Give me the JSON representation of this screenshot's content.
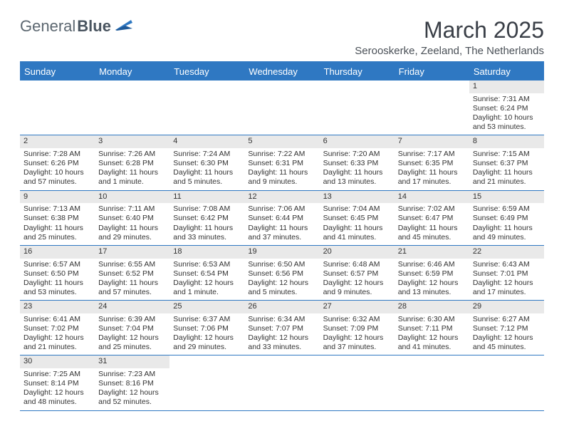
{
  "brand": {
    "part1": "General",
    "part2": "Blue"
  },
  "title": "March 2025",
  "subtitle": "Serooskerke, Zeeland, The Netherlands",
  "colors": {
    "header_bg": "#2f78c2",
    "header_text": "#ffffff",
    "body_text": "#333333",
    "brand_gray": "#5c6770",
    "daynum_bg": "#e9e9e9"
  },
  "day_headers": [
    "Sunday",
    "Monday",
    "Tuesday",
    "Wednesday",
    "Thursday",
    "Friday",
    "Saturday"
  ],
  "weeks": [
    [
      null,
      null,
      null,
      null,
      null,
      null,
      {
        "n": "1",
        "sr": "Sunrise: 7:31 AM",
        "ss": "Sunset: 6:24 PM",
        "dl": "Daylight: 10 hours and 53 minutes."
      }
    ],
    [
      {
        "n": "2",
        "sr": "Sunrise: 7:28 AM",
        "ss": "Sunset: 6:26 PM",
        "dl": "Daylight: 10 hours and 57 minutes."
      },
      {
        "n": "3",
        "sr": "Sunrise: 7:26 AM",
        "ss": "Sunset: 6:28 PM",
        "dl": "Daylight: 11 hours and 1 minute."
      },
      {
        "n": "4",
        "sr": "Sunrise: 7:24 AM",
        "ss": "Sunset: 6:30 PM",
        "dl": "Daylight: 11 hours and 5 minutes."
      },
      {
        "n": "5",
        "sr": "Sunrise: 7:22 AM",
        "ss": "Sunset: 6:31 PM",
        "dl": "Daylight: 11 hours and 9 minutes."
      },
      {
        "n": "6",
        "sr": "Sunrise: 7:20 AM",
        "ss": "Sunset: 6:33 PM",
        "dl": "Daylight: 11 hours and 13 minutes."
      },
      {
        "n": "7",
        "sr": "Sunrise: 7:17 AM",
        "ss": "Sunset: 6:35 PM",
        "dl": "Daylight: 11 hours and 17 minutes."
      },
      {
        "n": "8",
        "sr": "Sunrise: 7:15 AM",
        "ss": "Sunset: 6:37 PM",
        "dl": "Daylight: 11 hours and 21 minutes."
      }
    ],
    [
      {
        "n": "9",
        "sr": "Sunrise: 7:13 AM",
        "ss": "Sunset: 6:38 PM",
        "dl": "Daylight: 11 hours and 25 minutes."
      },
      {
        "n": "10",
        "sr": "Sunrise: 7:11 AM",
        "ss": "Sunset: 6:40 PM",
        "dl": "Daylight: 11 hours and 29 minutes."
      },
      {
        "n": "11",
        "sr": "Sunrise: 7:08 AM",
        "ss": "Sunset: 6:42 PM",
        "dl": "Daylight: 11 hours and 33 minutes."
      },
      {
        "n": "12",
        "sr": "Sunrise: 7:06 AM",
        "ss": "Sunset: 6:44 PM",
        "dl": "Daylight: 11 hours and 37 minutes."
      },
      {
        "n": "13",
        "sr": "Sunrise: 7:04 AM",
        "ss": "Sunset: 6:45 PM",
        "dl": "Daylight: 11 hours and 41 minutes."
      },
      {
        "n": "14",
        "sr": "Sunrise: 7:02 AM",
        "ss": "Sunset: 6:47 PM",
        "dl": "Daylight: 11 hours and 45 minutes."
      },
      {
        "n": "15",
        "sr": "Sunrise: 6:59 AM",
        "ss": "Sunset: 6:49 PM",
        "dl": "Daylight: 11 hours and 49 minutes."
      }
    ],
    [
      {
        "n": "16",
        "sr": "Sunrise: 6:57 AM",
        "ss": "Sunset: 6:50 PM",
        "dl": "Daylight: 11 hours and 53 minutes."
      },
      {
        "n": "17",
        "sr": "Sunrise: 6:55 AM",
        "ss": "Sunset: 6:52 PM",
        "dl": "Daylight: 11 hours and 57 minutes."
      },
      {
        "n": "18",
        "sr": "Sunrise: 6:53 AM",
        "ss": "Sunset: 6:54 PM",
        "dl": "Daylight: 12 hours and 1 minute."
      },
      {
        "n": "19",
        "sr": "Sunrise: 6:50 AM",
        "ss": "Sunset: 6:56 PM",
        "dl": "Daylight: 12 hours and 5 minutes."
      },
      {
        "n": "20",
        "sr": "Sunrise: 6:48 AM",
        "ss": "Sunset: 6:57 PM",
        "dl": "Daylight: 12 hours and 9 minutes."
      },
      {
        "n": "21",
        "sr": "Sunrise: 6:46 AM",
        "ss": "Sunset: 6:59 PM",
        "dl": "Daylight: 12 hours and 13 minutes."
      },
      {
        "n": "22",
        "sr": "Sunrise: 6:43 AM",
        "ss": "Sunset: 7:01 PM",
        "dl": "Daylight: 12 hours and 17 minutes."
      }
    ],
    [
      {
        "n": "23",
        "sr": "Sunrise: 6:41 AM",
        "ss": "Sunset: 7:02 PM",
        "dl": "Daylight: 12 hours and 21 minutes."
      },
      {
        "n": "24",
        "sr": "Sunrise: 6:39 AM",
        "ss": "Sunset: 7:04 PM",
        "dl": "Daylight: 12 hours and 25 minutes."
      },
      {
        "n": "25",
        "sr": "Sunrise: 6:37 AM",
        "ss": "Sunset: 7:06 PM",
        "dl": "Daylight: 12 hours and 29 minutes."
      },
      {
        "n": "26",
        "sr": "Sunrise: 6:34 AM",
        "ss": "Sunset: 7:07 PM",
        "dl": "Daylight: 12 hours and 33 minutes."
      },
      {
        "n": "27",
        "sr": "Sunrise: 6:32 AM",
        "ss": "Sunset: 7:09 PM",
        "dl": "Daylight: 12 hours and 37 minutes."
      },
      {
        "n": "28",
        "sr": "Sunrise: 6:30 AM",
        "ss": "Sunset: 7:11 PM",
        "dl": "Daylight: 12 hours and 41 minutes."
      },
      {
        "n": "29",
        "sr": "Sunrise: 6:27 AM",
        "ss": "Sunset: 7:12 PM",
        "dl": "Daylight: 12 hours and 45 minutes."
      }
    ],
    [
      {
        "n": "30",
        "sr": "Sunrise: 7:25 AM",
        "ss": "Sunset: 8:14 PM",
        "dl": "Daylight: 12 hours and 48 minutes."
      },
      {
        "n": "31",
        "sr": "Sunrise: 7:23 AM",
        "ss": "Sunset: 8:16 PM",
        "dl": "Daylight: 12 hours and 52 minutes."
      },
      null,
      null,
      null,
      null,
      null
    ]
  ]
}
